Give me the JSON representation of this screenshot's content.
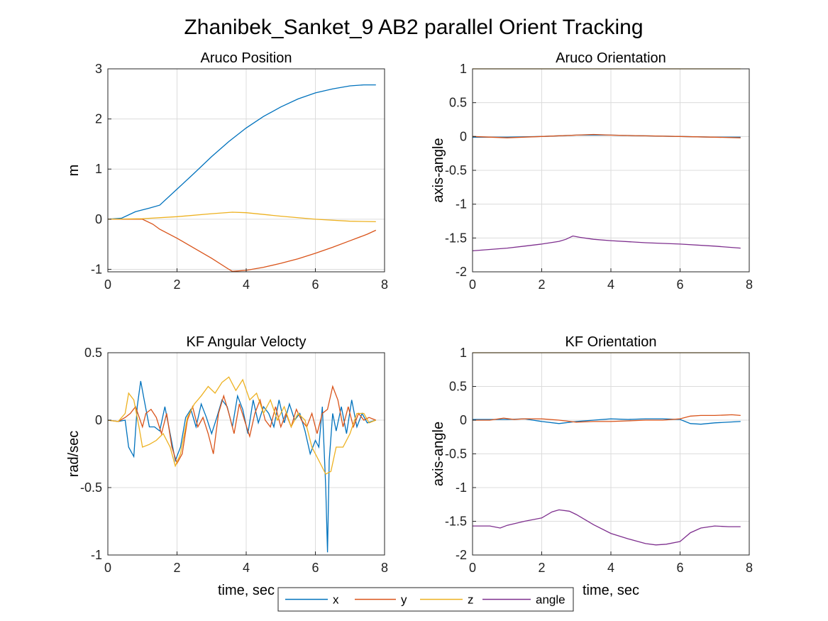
{
  "figure": {
    "title": "Zhanibek_Sanket_9 AB2 parallel Orient Tracking"
  },
  "legend": {
    "placement": "bottom-center",
    "entries": [
      {
        "name": "x",
        "color": "#0072BD"
      },
      {
        "name": "y",
        "color": "#D95319"
      },
      {
        "name": "z",
        "color": "#EDB120"
      },
      {
        "name": "angle",
        "color": "#7E2F8E"
      }
    ]
  },
  "chart_data": [
    {
      "type": "line",
      "title": "Aruco Position",
      "xlabel": "",
      "ylabel": "m",
      "xlim": [
        0,
        8
      ],
      "ylim": [
        -1.05,
        3
      ],
      "xticks": [
        0,
        2,
        4,
        6,
        8
      ],
      "yticks": [
        -1,
        0,
        1,
        2,
        3
      ],
      "grid": true,
      "series": [
        {
          "name": "x",
          "color": "#0072BD",
          "x": [
            0,
            0.4,
            0.8,
            1.2,
            1.5,
            2.0,
            2.5,
            3.0,
            3.5,
            4.0,
            4.5,
            5.0,
            5.5,
            6.0,
            6.5,
            7.0,
            7.4,
            7.75
          ],
          "y": [
            0,
            0.02,
            0.15,
            0.22,
            0.28,
            0.6,
            0.92,
            1.25,
            1.55,
            1.82,
            2.05,
            2.24,
            2.4,
            2.52,
            2.6,
            2.66,
            2.68,
            2.68
          ]
        },
        {
          "name": "y",
          "color": "#D95319",
          "x": [
            0,
            0.5,
            1.0,
            1.3,
            1.5,
            2.0,
            2.5,
            3.0,
            3.5,
            3.6,
            4.0,
            4.5,
            5.0,
            5.5,
            6.0,
            6.5,
            7.0,
            7.5,
            7.75
          ],
          "y": [
            0,
            0,
            0,
            -0.1,
            -0.2,
            -0.38,
            -0.58,
            -0.78,
            -1.0,
            -1.04,
            -1.02,
            -0.96,
            -0.88,
            -0.79,
            -0.68,
            -0.56,
            -0.43,
            -0.3,
            -0.22
          ]
        },
        {
          "name": "z",
          "color": "#EDB120",
          "x": [
            0,
            1.0,
            2.0,
            3.0,
            3.6,
            4.0,
            5.0,
            6.0,
            7.0,
            7.75
          ],
          "y": [
            0,
            0.01,
            0.05,
            0.11,
            0.14,
            0.13,
            0.06,
            0.0,
            -0.04,
            -0.05
          ]
        }
      ]
    },
    {
      "type": "line",
      "title": "Aruco Orientation",
      "xlabel": "",
      "ylabel": "axis-angle",
      "xlim": [
        0,
        8
      ],
      "ylim": [
        -2,
        1
      ],
      "xticks": [
        0,
        2,
        4,
        6,
        8
      ],
      "yticks": [
        -2,
        -1.5,
        -1,
        -0.5,
        0,
        0.5,
        1
      ],
      "grid": true,
      "series": [
        {
          "name": "x",
          "color": "#0072BD",
          "x": [
            0,
            1,
            2,
            3,
            3.5,
            4,
            5,
            6,
            7,
            7.75
          ],
          "y": [
            -0.01,
            -0.01,
            0.0,
            0.02,
            0.02,
            0.02,
            0.01,
            0.0,
            -0.01,
            -0.01
          ]
        },
        {
          "name": "y",
          "color": "#D95319",
          "x": [
            0,
            1,
            2,
            3,
            3.5,
            4,
            5,
            6,
            7,
            7.75
          ],
          "y": [
            0.0,
            -0.02,
            0.0,
            0.02,
            0.03,
            0.02,
            0.01,
            0.0,
            -0.01,
            -0.02
          ]
        },
        {
          "name": "z",
          "color": "#EDB120",
          "x": [
            0,
            7.75
          ],
          "y": [
            1.0,
            1.0
          ]
        },
        {
          "name": "angle",
          "color": "#7E2F8E",
          "x": [
            0,
            0.5,
            1,
            1.5,
            2,
            2.5,
            2.7,
            2.9,
            3.1,
            3.5,
            4,
            5,
            6,
            7,
            7.75
          ],
          "y": [
            -1.69,
            -1.67,
            -1.65,
            -1.62,
            -1.59,
            -1.55,
            -1.52,
            -1.47,
            -1.49,
            -1.52,
            -1.54,
            -1.57,
            -1.59,
            -1.62,
            -1.65
          ]
        }
      ]
    },
    {
      "type": "line",
      "title": "KF Angular Velocty",
      "xlabel": "time, sec",
      "ylabel": "rad/sec",
      "xlim": [
        0,
        8
      ],
      "ylim": [
        -1,
        0.5
      ],
      "xticks": [
        0,
        2,
        4,
        6,
        8
      ],
      "yticks": [
        -1,
        -0.5,
        0,
        0.5
      ],
      "grid": true,
      "series": [
        {
          "name": "x",
          "color": "#0072BD",
          "x": [
            0,
            0.3,
            0.5,
            0.6,
            0.75,
            0.85,
            0.95,
            1.05,
            1.2,
            1.35,
            1.5,
            1.65,
            1.8,
            1.95,
            2.1,
            2.25,
            2.4,
            2.55,
            2.7,
            2.85,
            3.0,
            3.15,
            3.3,
            3.45,
            3.6,
            3.75,
            3.9,
            4.05,
            4.2,
            4.35,
            4.5,
            4.65,
            4.8,
            4.95,
            5.1,
            5.25,
            5.4,
            5.55,
            5.7,
            5.85,
            6.0,
            6.1,
            6.2,
            6.3,
            6.35,
            6.4,
            6.5,
            6.6,
            6.75,
            6.9,
            7.05,
            7.2,
            7.35,
            7.5,
            7.75
          ],
          "y": [
            0,
            -0.01,
            0.0,
            -0.2,
            -0.27,
            0.1,
            0.29,
            0.15,
            -0.05,
            -0.05,
            -0.08,
            0.1,
            -0.1,
            -0.3,
            -0.2,
            0.02,
            0.08,
            -0.05,
            0.12,
            0.02,
            -0.1,
            0.02,
            0.15,
            0.1,
            -0.05,
            0.18,
            0.08,
            -0.1,
            0.15,
            -0.02,
            0.1,
            0.05,
            -0.05,
            0.15,
            -0.02,
            0.12,
            0.0,
            0.05,
            -0.08,
            -0.25,
            -0.15,
            -0.2,
            0.1,
            -0.5,
            -0.98,
            -0.3,
            0.05,
            -0.08,
            0.1,
            -0.1,
            0.15,
            -0.05,
            0.05,
            -0.02,
            0.0
          ]
        },
        {
          "name": "y",
          "color": "#D95319",
          "x": [
            0,
            0.3,
            0.5,
            0.65,
            0.8,
            1.0,
            1.1,
            1.25,
            1.4,
            1.55,
            1.7,
            1.85,
            2.0,
            2.15,
            2.3,
            2.45,
            2.6,
            2.75,
            2.9,
            3.05,
            3.2,
            3.35,
            3.5,
            3.65,
            3.8,
            3.95,
            4.1,
            4.25,
            4.4,
            4.55,
            4.7,
            4.85,
            5.0,
            5.15,
            5.3,
            5.45,
            5.6,
            5.75,
            5.9,
            6.05,
            6.2,
            6.35,
            6.5,
            6.65,
            6.8,
            6.95,
            7.1,
            7.25,
            7.4,
            7.55,
            7.75
          ],
          "y": [
            0,
            -0.01,
            0.02,
            0.05,
            0.1,
            -0.05,
            0.05,
            0.08,
            0.02,
            -0.1,
            0.05,
            -0.2,
            -0.32,
            -0.25,
            0.0,
            0.1,
            -0.05,
            0.02,
            -0.1,
            -0.25,
            0.05,
            0.18,
            0.05,
            -0.1,
            0.12,
            0.0,
            -0.12,
            0.05,
            0.15,
            0.0,
            -0.05,
            0.1,
            -0.05,
            0.05,
            -0.05,
            0.08,
            0.0,
            -0.05,
            0.05,
            -0.1,
            0.05,
            0.08,
            0.25,
            0.15,
            -0.05,
            0.1,
            -0.05,
            0.05,
            0.0,
            0.02,
            0.0
          ]
        },
        {
          "name": "z",
          "color": "#EDB120",
          "x": [
            0,
            0.3,
            0.5,
            0.6,
            0.75,
            0.9,
            1.0,
            1.2,
            1.4,
            1.6,
            1.8,
            1.95,
            2.1,
            2.3,
            2.5,
            2.7,
            2.9,
            3.1,
            3.3,
            3.5,
            3.7,
            3.9,
            4.1,
            4.3,
            4.5,
            4.7,
            4.9,
            5.1,
            5.3,
            5.5,
            5.7,
            5.9,
            6.1,
            6.3,
            6.45,
            6.6,
            6.8,
            7.0,
            7.2,
            7.4,
            7.55,
            7.75
          ],
          "y": [
            0,
            -0.01,
            0.05,
            0.2,
            0.15,
            -0.05,
            -0.2,
            -0.18,
            -0.15,
            -0.1,
            -0.2,
            -0.34,
            -0.25,
            0.02,
            0.12,
            0.18,
            0.25,
            0.2,
            0.28,
            0.32,
            0.22,
            0.3,
            0.15,
            0.2,
            0.05,
            0.15,
            0.0,
            0.1,
            -0.05,
            0.05,
            0.0,
            -0.2,
            -0.3,
            -0.4,
            -0.38,
            -0.2,
            -0.2,
            -0.1,
            0.05,
            0.05,
            -0.02,
            0.0
          ]
        }
      ]
    },
    {
      "type": "line",
      "title": "KF Orientation",
      "xlabel": "time, sec",
      "ylabel": "axis-angle",
      "xlim": [
        0,
        8
      ],
      "ylim": [
        -2,
        1
      ],
      "xticks": [
        0,
        2,
        4,
        6,
        8
      ],
      "yticks": [
        -2,
        -1.5,
        -1,
        -0.5,
        0,
        0.5,
        1
      ],
      "grid": true,
      "series": [
        {
          "name": "x",
          "color": "#0072BD",
          "x": [
            0,
            0.5,
            1,
            1.5,
            2,
            2.5,
            3,
            3.5,
            4,
            4.5,
            5,
            5.5,
            6,
            6.3,
            6.6,
            7,
            7.75
          ],
          "y": [
            0.01,
            0.01,
            0.01,
            0.02,
            -0.02,
            -0.05,
            -0.02,
            0.0,
            0.02,
            0.01,
            0.02,
            0.02,
            0.01,
            -0.05,
            -0.06,
            -0.04,
            -0.02
          ]
        },
        {
          "name": "y",
          "color": "#D95319",
          "x": [
            0,
            0.5,
            0.9,
            1.2,
            1.5,
            2,
            2.5,
            3,
            3.5,
            4,
            4.5,
            5,
            5.5,
            6,
            6.3,
            6.6,
            7,
            7.5,
            7.75
          ],
          "y": [
            0.0,
            0.0,
            0.03,
            0.01,
            0.02,
            0.02,
            0.0,
            -0.03,
            -0.02,
            -0.02,
            -0.01,
            0.0,
            0.0,
            0.02,
            0.06,
            0.07,
            0.07,
            0.08,
            0.07
          ]
        },
        {
          "name": "z",
          "color": "#EDB120",
          "x": [
            0,
            7.75
          ],
          "y": [
            1.0,
            1.0
          ]
        },
        {
          "name": "angle",
          "color": "#7E2F8E",
          "x": [
            0,
            0.5,
            0.8,
            1.0,
            1.5,
            2.0,
            2.3,
            2.5,
            2.8,
            3.0,
            3.5,
            4.0,
            4.5,
            5.0,
            5.3,
            5.6,
            6.0,
            6.3,
            6.6,
            7.0,
            7.4,
            7.75
          ],
          "y": [
            -1.57,
            -1.57,
            -1.6,
            -1.56,
            -1.5,
            -1.45,
            -1.36,
            -1.33,
            -1.35,
            -1.4,
            -1.55,
            -1.68,
            -1.76,
            -1.83,
            -1.85,
            -1.84,
            -1.8,
            -1.67,
            -1.6,
            -1.57,
            -1.58,
            -1.58
          ]
        }
      ]
    }
  ]
}
